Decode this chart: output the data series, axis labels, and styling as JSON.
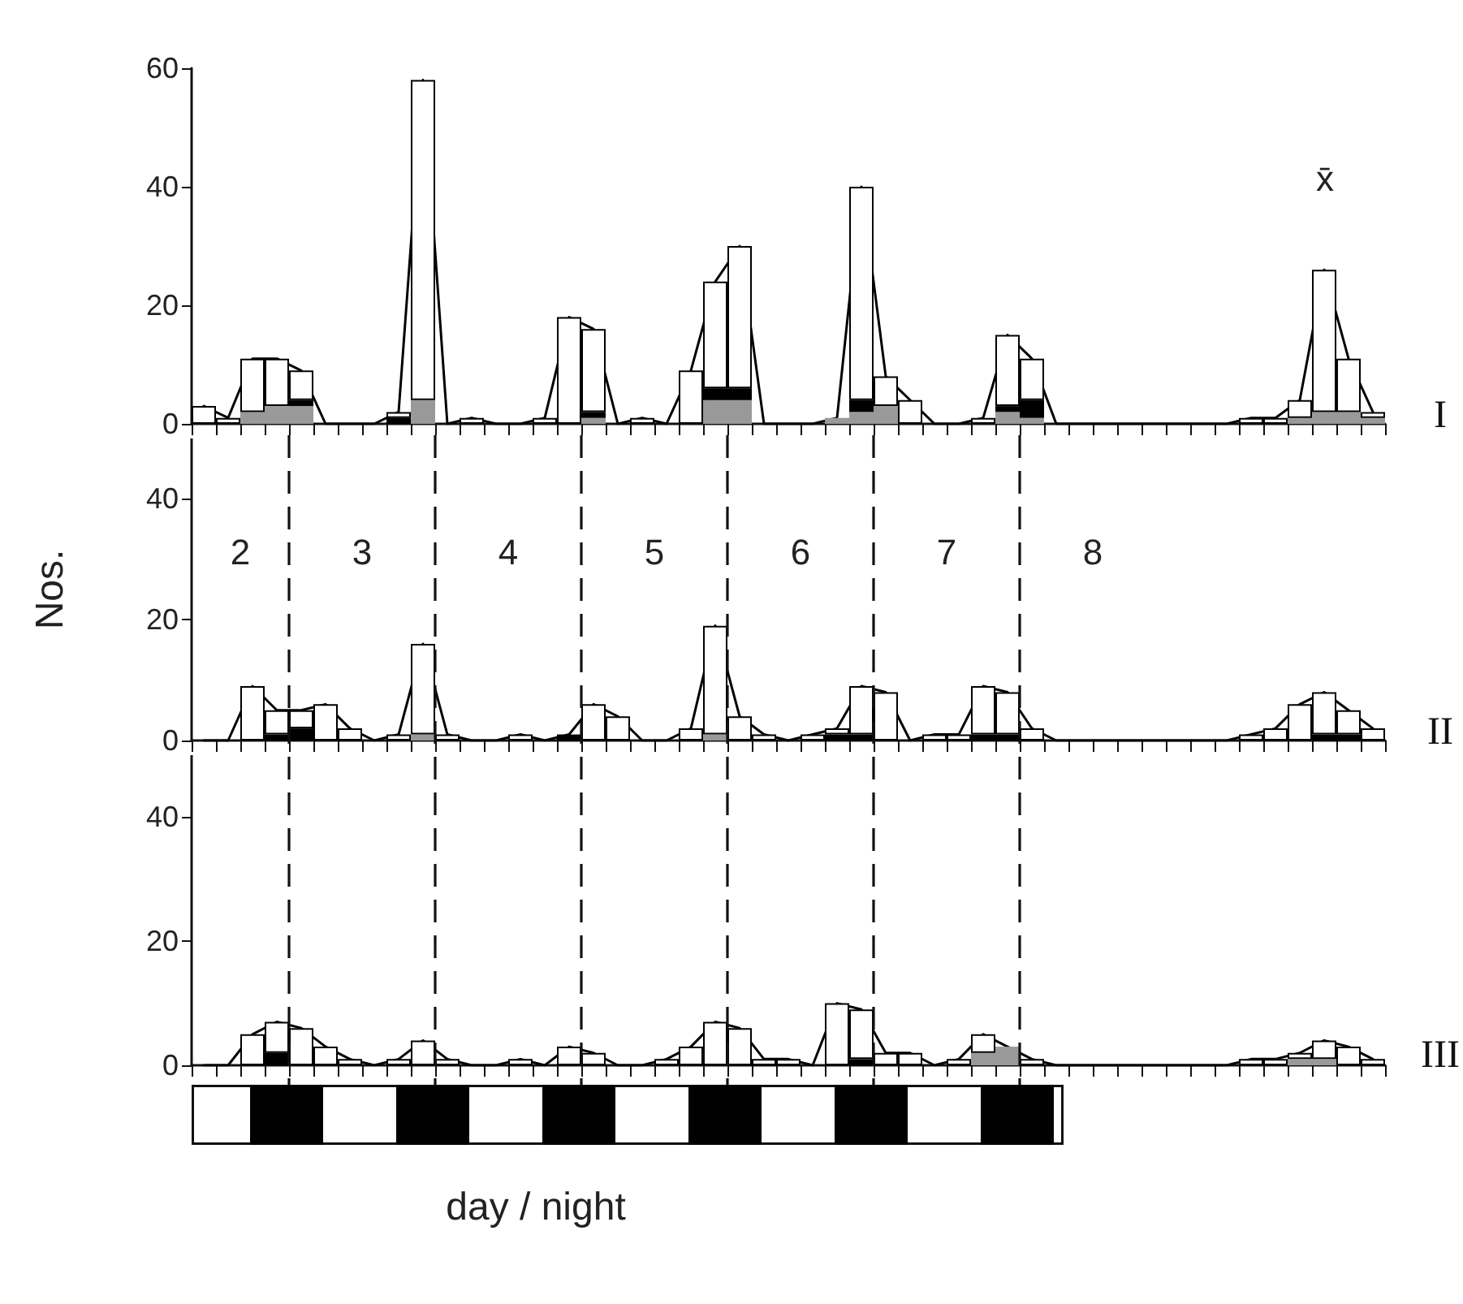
{
  "chart_data": [
    {
      "type": "bar",
      "stacked": true,
      "tick_labels": "y",
      "ylim": [
        0,
        60
      ],
      "yticks": [
        0,
        20,
        40,
        60
      ],
      "categories": [
        null,
        null,
        null,
        null,
        null,
        null,
        null,
        null,
        null,
        null,
        null,
        null,
        null,
        null,
        null,
        null,
        null,
        null,
        null,
        null,
        null,
        null,
        null,
        null,
        null,
        null,
        null,
        null,
        null,
        null,
        null,
        null,
        null,
        null,
        null,
        null,
        null,
        null,
        null,
        null,
        null,
        null,
        null,
        null,
        null,
        null,
        null,
        null,
        null
      ],
      "series": [
        {
          "color": "#999999",
          "values": [
            0,
            0,
            2,
            3,
            3,
            0,
            0,
            0,
            0,
            4,
            0,
            0,
            0,
            0,
            0,
            0,
            1,
            0,
            0,
            0,
            0,
            4,
            4,
            0,
            0,
            0,
            1,
            2,
            3,
            0,
            0,
            0,
            0,
            2,
            1,
            0,
            0,
            0,
            0,
            0,
            0,
            0,
            0,
            0,
            0,
            1,
            2,
            2,
            1
          ]
        },
        {
          "color": "#000000",
          "values": [
            0,
            0,
            0,
            0,
            1,
            0,
            0,
            0,
            1,
            0,
            0,
            0,
            0,
            0,
            0,
            0,
            1,
            0,
            0,
            0,
            0,
            2,
            2,
            0,
            0,
            0,
            0,
            2,
            0,
            0,
            0,
            0,
            0,
            1,
            3,
            0,
            0,
            0,
            0,
            0,
            0,
            0,
            0,
            0,
            0,
            0,
            0,
            0,
            0
          ]
        },
        {
          "color": "#ffffff",
          "values": [
            3,
            1,
            9,
            8,
            5,
            0,
            0,
            0,
            1,
            54,
            0,
            1,
            0,
            0,
            1,
            18,
            14,
            0,
            1,
            0,
            9,
            18,
            24,
            0,
            0,
            0,
            0,
            36,
            5,
            4,
            0,
            0,
            1,
            12,
            7,
            0,
            0,
            0,
            0,
            0,
            0,
            0,
            0,
            1,
            1,
            3,
            24,
            9,
            1
          ]
        },
        {
          "type": "line",
          "color": "#000000",
          "values": [
            3,
            1,
            11,
            11,
            9,
            0,
            0,
            0,
            2,
            58,
            0,
            1,
            0,
            0,
            1,
            18,
            16,
            0,
            1,
            0,
            9,
            24,
            30,
            0,
            0,
            0,
            1,
            40,
            8,
            4,
            0,
            0,
            1,
            15,
            11,
            0,
            0,
            0,
            0,
            0,
            0,
            0,
            0,
            1,
            1,
            4,
            26,
            11,
            2
          ]
        }
      ],
      "annotations": [
        "I",
        "x̄"
      ]
    },
    {
      "type": "bar",
      "ylabel": "Nos.",
      "stacked": true,
      "tick_labels": "y",
      "ylim": [
        0,
        50
      ],
      "yticks": [
        0,
        20,
        40
      ],
      "categories": [
        null,
        null,
        null,
        null,
        null,
        null,
        null,
        null,
        null,
        null,
        null,
        null,
        null,
        null,
        null,
        null,
        null,
        null,
        null,
        null,
        null,
        null,
        null,
        null,
        null,
        null,
        null,
        null,
        null,
        null,
        null,
        null,
        null,
        null,
        null,
        null,
        null,
        null,
        null,
        null,
        null,
        null,
        null,
        null,
        null,
        null,
        null,
        null,
        null
      ],
      "series": [
        {
          "color": "#999999",
          "values": [
            0,
            0,
            0,
            0,
            0,
            0,
            0,
            0,
            0,
            1,
            0,
            0,
            0,
            0,
            0,
            0,
            0,
            0,
            0,
            0,
            0,
            1,
            0,
            0,
            0,
            0,
            0,
            0,
            0,
            0,
            0,
            0,
            0,
            0,
            0,
            0,
            0,
            0,
            0,
            0,
            0,
            0,
            0,
            0,
            0,
            0,
            0,
            0,
            0
          ]
        },
        {
          "color": "#000000",
          "values": [
            0,
            0,
            0,
            1,
            2,
            0,
            0,
            0,
            0,
            0,
            0,
            0,
            0,
            0,
            0,
            1,
            0,
            0,
            0,
            0,
            0,
            0,
            0,
            0,
            0,
            0,
            1,
            1,
            0,
            0,
            0,
            0,
            1,
            1,
            0,
            0,
            0,
            0,
            0,
            0,
            0,
            0,
            0,
            0,
            0,
            0,
            1,
            1,
            0
          ]
        },
        {
          "color": "#ffffff",
          "values": [
            0,
            0,
            9,
            4,
            3,
            6,
            2,
            0,
            1,
            15,
            1,
            0,
            0,
            1,
            0,
            0,
            6,
            4,
            0,
            0,
            2,
            18,
            4,
            1,
            0,
            1,
            1,
            8,
            8,
            0,
            1,
            1,
            8,
            7,
            2,
            0,
            0,
            0,
            0,
            0,
            0,
            0,
            0,
            1,
            2,
            6,
            7,
            4,
            2
          ]
        },
        {
          "type": "line",
          "color": "#000000",
          "values": [
            0,
            0,
            9,
            5,
            5,
            6,
            2,
            0,
            1,
            16,
            1,
            0,
            0,
            1,
            0,
            1,
            6,
            4,
            0,
            0,
            2,
            19,
            4,
            1,
            0,
            1,
            2,
            9,
            8,
            0,
            1,
            1,
            9,
            8,
            2,
            0,
            0,
            0,
            0,
            0,
            0,
            0,
            0,
            1,
            2,
            6,
            8,
            5,
            2
          ]
        }
      ],
      "annotations": [
        "II",
        "2",
        "3",
        "4",
        "5",
        "6",
        "7",
        "8"
      ]
    },
    {
      "type": "bar",
      "xlabel": "day / night",
      "annotations": [
        "III"
      ],
      "stacked": true,
      "tick_labels": "y",
      "ylim": [
        0,
        50
      ],
      "yticks": [
        0,
        20,
        40
      ],
      "categories": [
        null,
        null,
        null,
        null,
        null,
        null,
        null,
        null,
        null,
        null,
        null,
        null,
        null,
        null,
        null,
        null,
        null,
        null,
        null,
        null,
        null,
        null,
        null,
        null,
        null,
        null,
        null,
        null,
        null,
        null,
        null,
        null,
        null,
        null,
        null,
        null,
        null,
        null,
        null,
        null,
        null,
        null,
        null,
        null,
        null,
        null,
        null,
        null,
        null
      ],
      "series": [
        {
          "color": "#999999",
          "values": [
            0,
            0,
            0,
            0,
            0,
            0,
            0,
            0,
            0,
            0,
            0,
            0,
            0,
            0,
            0,
            0,
            0,
            0,
            0,
            0,
            0,
            0,
            0,
            0,
            0,
            0,
            0,
            0,
            0,
            0,
            0,
            0,
            2,
            3,
            0,
            0,
            0,
            0,
            0,
            0,
            0,
            0,
            0,
            0,
            0,
            1,
            1,
            0,
            0
          ]
        },
        {
          "color": "#000000",
          "values": [
            0,
            0,
            0,
            2,
            0,
            0,
            0,
            0,
            0,
            0,
            0,
            0,
            0,
            0,
            0,
            0,
            0,
            0,
            0,
            0,
            0,
            0,
            0,
            0,
            0,
            0,
            0,
            1,
            0,
            0,
            0,
            0,
            0,
            0,
            0,
            0,
            0,
            0,
            0,
            0,
            0,
            0,
            0,
            0,
            0,
            0,
            0,
            0,
            0
          ]
        },
        {
          "color": "#ffffff",
          "values": [
            0,
            0,
            5,
            5,
            6,
            3,
            1,
            0,
            1,
            4,
            1,
            0,
            0,
            1,
            0,
            3,
            2,
            0,
            0,
            1,
            3,
            7,
            6,
            1,
            1,
            0,
            10,
            8,
            2,
            2,
            0,
            1,
            3,
            0,
            1,
            0,
            0,
            0,
            0,
            0,
            0,
            0,
            0,
            1,
            1,
            1,
            3,
            3,
            1
          ]
        },
        {
          "type": "line",
          "color": "#000000",
          "values": [
            0,
            0,
            5,
            7,
            6,
            3,
            1,
            0,
            1,
            4,
            1,
            0,
            0,
            1,
            0,
            3,
            2,
            0,
            0,
            1,
            3,
            7,
            6,
            1,
            1,
            0,
            10,
            9,
            2,
            2,
            0,
            1,
            5,
            3,
            1,
            0,
            0,
            0,
            0,
            0,
            0,
            0,
            0,
            1,
            1,
            2,
            4,
            3,
            1
          ]
        }
      ]
    }
  ]
}
